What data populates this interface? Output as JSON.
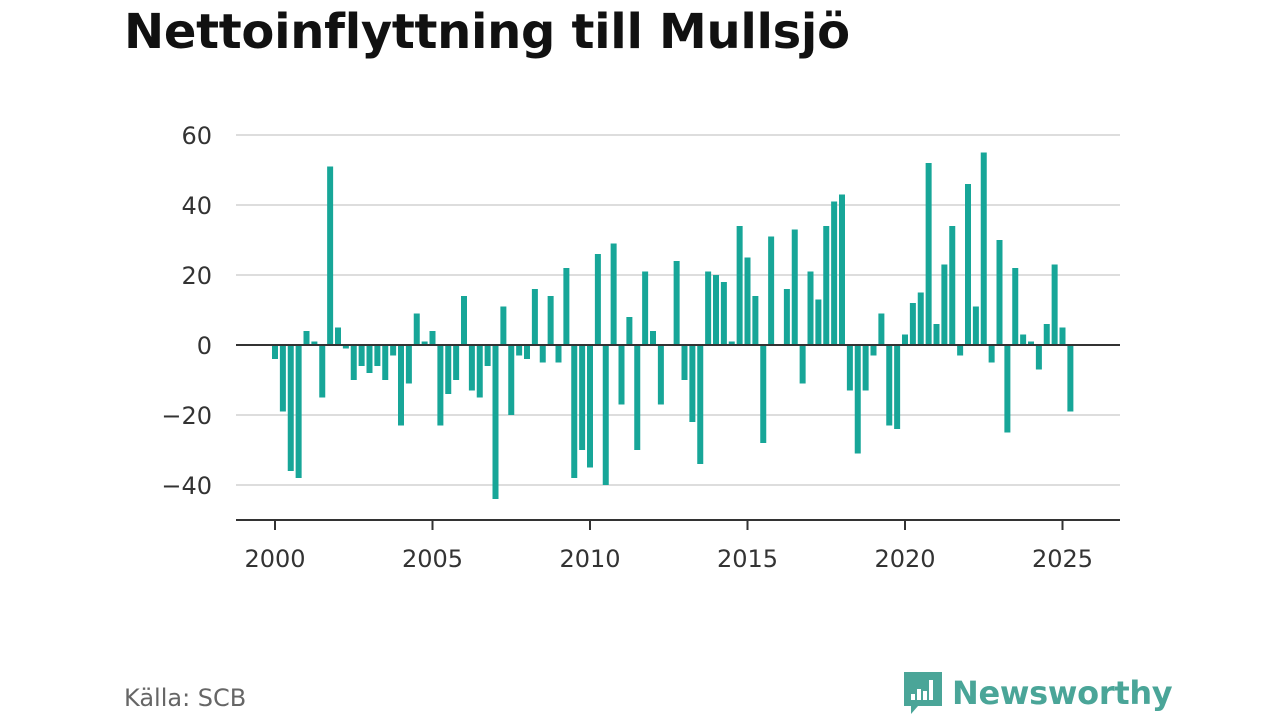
{
  "title": "Nettoinflyttning till Mullsjö",
  "source": "Källa: SCB",
  "brand": "Newsworthy",
  "colors": {
    "bar": "#17a698",
    "grid": "#dddddd",
    "axis": "#333333",
    "brand": "#4aa598"
  },
  "chart_data": {
    "type": "bar",
    "title": "Nettoinflyttning till Mullsjö",
    "xlabel": "",
    "ylabel": "",
    "x_ticks": [
      "2000",
      "2005",
      "2010",
      "2015",
      "2020",
      "2025"
    ],
    "y_ticks": [
      "60",
      "40",
      "20",
      "0",
      "−20",
      "−40"
    ],
    "xlim": [
      1999,
      2027
    ],
    "ylim": [
      -50,
      60
    ],
    "grid": true,
    "frequency": "quarterly",
    "x_start": 2000.0,
    "values": [
      -4,
      -19,
      -36,
      -38,
      4,
      1,
      -15,
      51,
      5,
      -1,
      -10,
      -6,
      -8,
      -6,
      -10,
      -3,
      -23,
      -11,
      9,
      1,
      4,
      -23,
      -14,
      -10,
      14,
      -13,
      -15,
      -6,
      -44,
      11,
      -20,
      -3,
      -4,
      16,
      -5,
      14,
      -5,
      22,
      -38,
      -30,
      -35,
      26,
      -40,
      29,
      -17,
      8,
      -30,
      21,
      4,
      -17,
      0,
      24,
      -10,
      -22,
      -34,
      21,
      20,
      18,
      1,
      34,
      25,
      14,
      -28,
      31,
      0,
      16,
      33,
      -11,
      21,
      13,
      34,
      41,
      43,
      -13,
      -31,
      -13,
      -3,
      9,
      -23,
      -24,
      3,
      12,
      15,
      52,
      6,
      23,
      34,
      -3,
      46,
      11,
      55,
      -5,
      30,
      -25,
      22,
      3,
      1,
      -7,
      6,
      23,
      5,
      -19
    ]
  }
}
